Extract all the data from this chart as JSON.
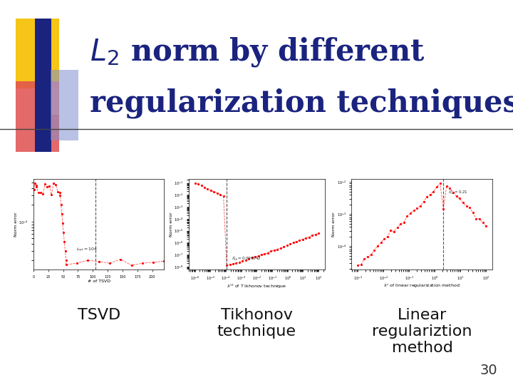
{
  "title_color": "#1a237e",
  "bg_color": "#ffffff",
  "label1": "TSVD",
  "label2": "Tikhonov\ntechnique",
  "label3": "Linear\nregulariztion\nmethod",
  "page_number": "30",
  "label_fontsize": 16,
  "page_fontsize": 14,
  "accent_colors": {
    "yellow": "#f5c518",
    "pink_red": "#e05050",
    "blue_dark": "#1a237e",
    "blue_light": "#8090d0"
  },
  "chart_bg": "#ffffff",
  "chart_border": "#000000"
}
